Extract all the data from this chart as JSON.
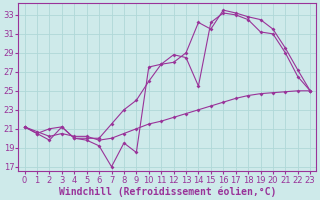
{
  "background_color": "#ceeaea",
  "line_color": "#993399",
  "grid_color": "#b0d8d8",
  "xlabel": "Windchill (Refroidissement éolien,°C)",
  "xlabel_fontsize": 7,
  "tick_fontsize": 6,
  "ylim": [
    16.5,
    34.2
  ],
  "xlim": [
    -0.5,
    23.5
  ],
  "yticks": [
    17,
    19,
    21,
    23,
    25,
    27,
    29,
    31,
    33
  ],
  "xticks": [
    0,
    1,
    2,
    3,
    4,
    5,
    6,
    7,
    8,
    9,
    10,
    11,
    12,
    13,
    14,
    15,
    16,
    17,
    18,
    19,
    20,
    21,
    22,
    23
  ],
  "line1_x": [
    0,
    1,
    2,
    3,
    4,
    5,
    6,
    7,
    8,
    9,
    10,
    11,
    12,
    13,
    14,
    15,
    16,
    17,
    18,
    19,
    20,
    21,
    22,
    23
  ],
  "line1_y": [
    21.2,
    20.7,
    20.2,
    20.5,
    20.2,
    20.2,
    19.8,
    20.0,
    20.5,
    21.0,
    21.5,
    21.8,
    22.2,
    22.6,
    23.0,
    23.4,
    23.8,
    24.2,
    24.5,
    24.7,
    24.8,
    24.9,
    25.0,
    25.0
  ],
  "line2_x": [
    0,
    1,
    2,
    3,
    4,
    5,
    6,
    7,
    8,
    9,
    10,
    11,
    12,
    13,
    14,
    15,
    16,
    17,
    18,
    19,
    20,
    21,
    22,
    23
  ],
  "line2_y": [
    21.2,
    20.5,
    19.8,
    21.2,
    20.0,
    19.8,
    19.2,
    17.0,
    19.5,
    18.5,
    27.5,
    27.8,
    28.8,
    28.5,
    25.5,
    32.2,
    33.2,
    33.0,
    32.5,
    31.2,
    31.0,
    29.0,
    26.5,
    25.0
  ],
  "line3_x": [
    0,
    1,
    2,
    3,
    4,
    5,
    6,
    7,
    8,
    9,
    10,
    11,
    12,
    13,
    14,
    15,
    16,
    17,
    18,
    19,
    20,
    21,
    22,
    23
  ],
  "line3_y": [
    21.2,
    20.5,
    21.0,
    21.2,
    20.0,
    20.0,
    20.0,
    21.5,
    23.0,
    24.0,
    26.0,
    27.8,
    28.0,
    29.0,
    32.2,
    31.5,
    33.5,
    33.2,
    32.8,
    32.5,
    31.5,
    29.5,
    27.2,
    25.0
  ]
}
